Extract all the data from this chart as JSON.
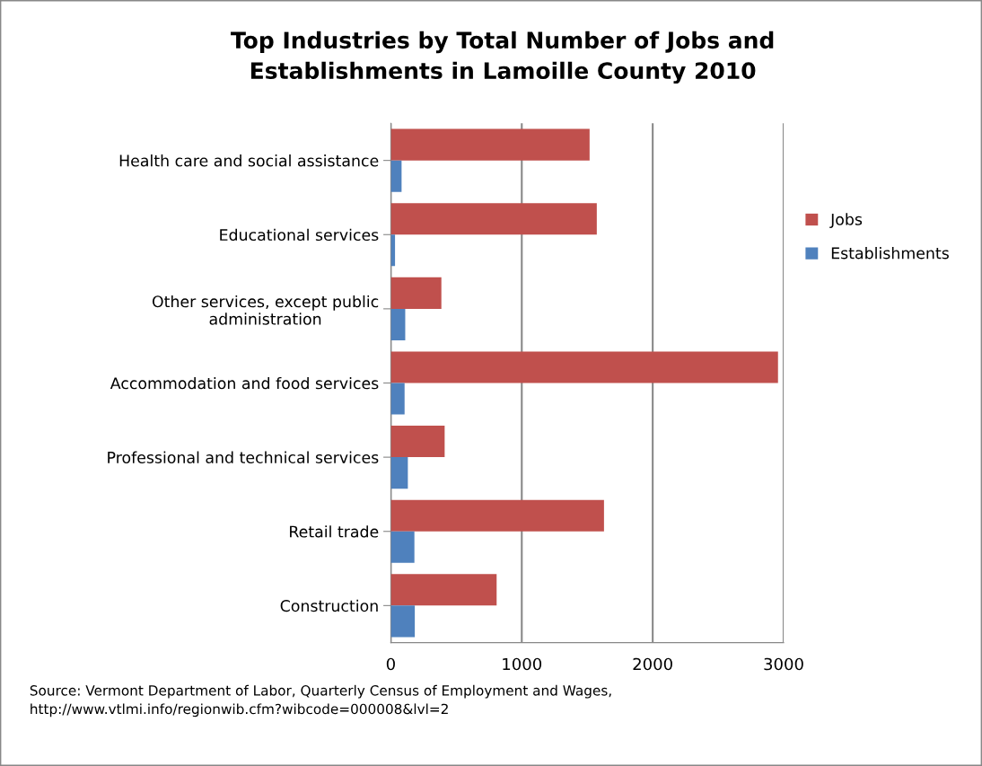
{
  "chart_data": {
    "type": "bar",
    "orientation": "horizontal",
    "title": "Top Industries by Total Number of Jobs and\nEstablishments in Lamoille County 2010",
    "categories": [
      "Health care and social assistance",
      "Educational services",
      "Other services, except public\nadministration",
      "Accommodation and food services",
      "Professional and technical services",
      "Retail trade",
      "Construction"
    ],
    "series": [
      {
        "name": "Jobs",
        "color": "#c0504d",
        "values": [
          1518,
          1573,
          386,
          2957,
          411,
          1628,
          808
        ]
      },
      {
        "name": "Establishments",
        "color": "#4f81bd",
        "values": [
          82,
          32,
          110,
          105,
          130,
          180,
          183
        ]
      }
    ],
    "xlim": [
      0,
      3000
    ],
    "xticks": [
      0,
      1000,
      2000,
      3000
    ],
    "grid": "x",
    "legend": "right",
    "annotations": [
      "Source: Vermont Department of Labor, Quarterly Census of Employment and Wages,\nhttp://www.vtlmi.info/regionwib.cfm?wibcode=000008&lvl=2"
    ]
  }
}
